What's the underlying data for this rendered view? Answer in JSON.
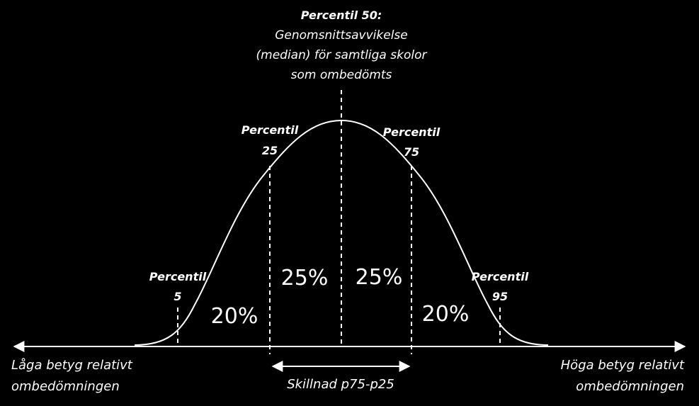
{
  "top_label": {
    "title": "Percentil 50:",
    "lines": [
      "Genomsnittsavvikelse",
      "(median) för samtliga skolor",
      "som ombedömts"
    ]
  },
  "percentiles": {
    "p25": {
      "line1": "Percentil",
      "line2": "25"
    },
    "p75": {
      "line1": "Percentil",
      "line2": "75"
    },
    "p5": {
      "line1": "Percentil",
      "line2": "5"
    },
    "p95": {
      "line1": "Percentil",
      "line2": "95"
    }
  },
  "areas": {
    "left_outer": "20%",
    "left_inner": "25%",
    "right_inner": "25%",
    "right_outer": "20%"
  },
  "axis": {
    "left_label": [
      "Låga betyg relativt",
      "ombedömningen"
    ],
    "right_label": [
      "Höga betyg relativt",
      "ombedömningen"
    ]
  },
  "range_label": "Skillnad p75-p25",
  "colors": {
    "background": "#000000",
    "foreground": "#ffffff"
  }
}
